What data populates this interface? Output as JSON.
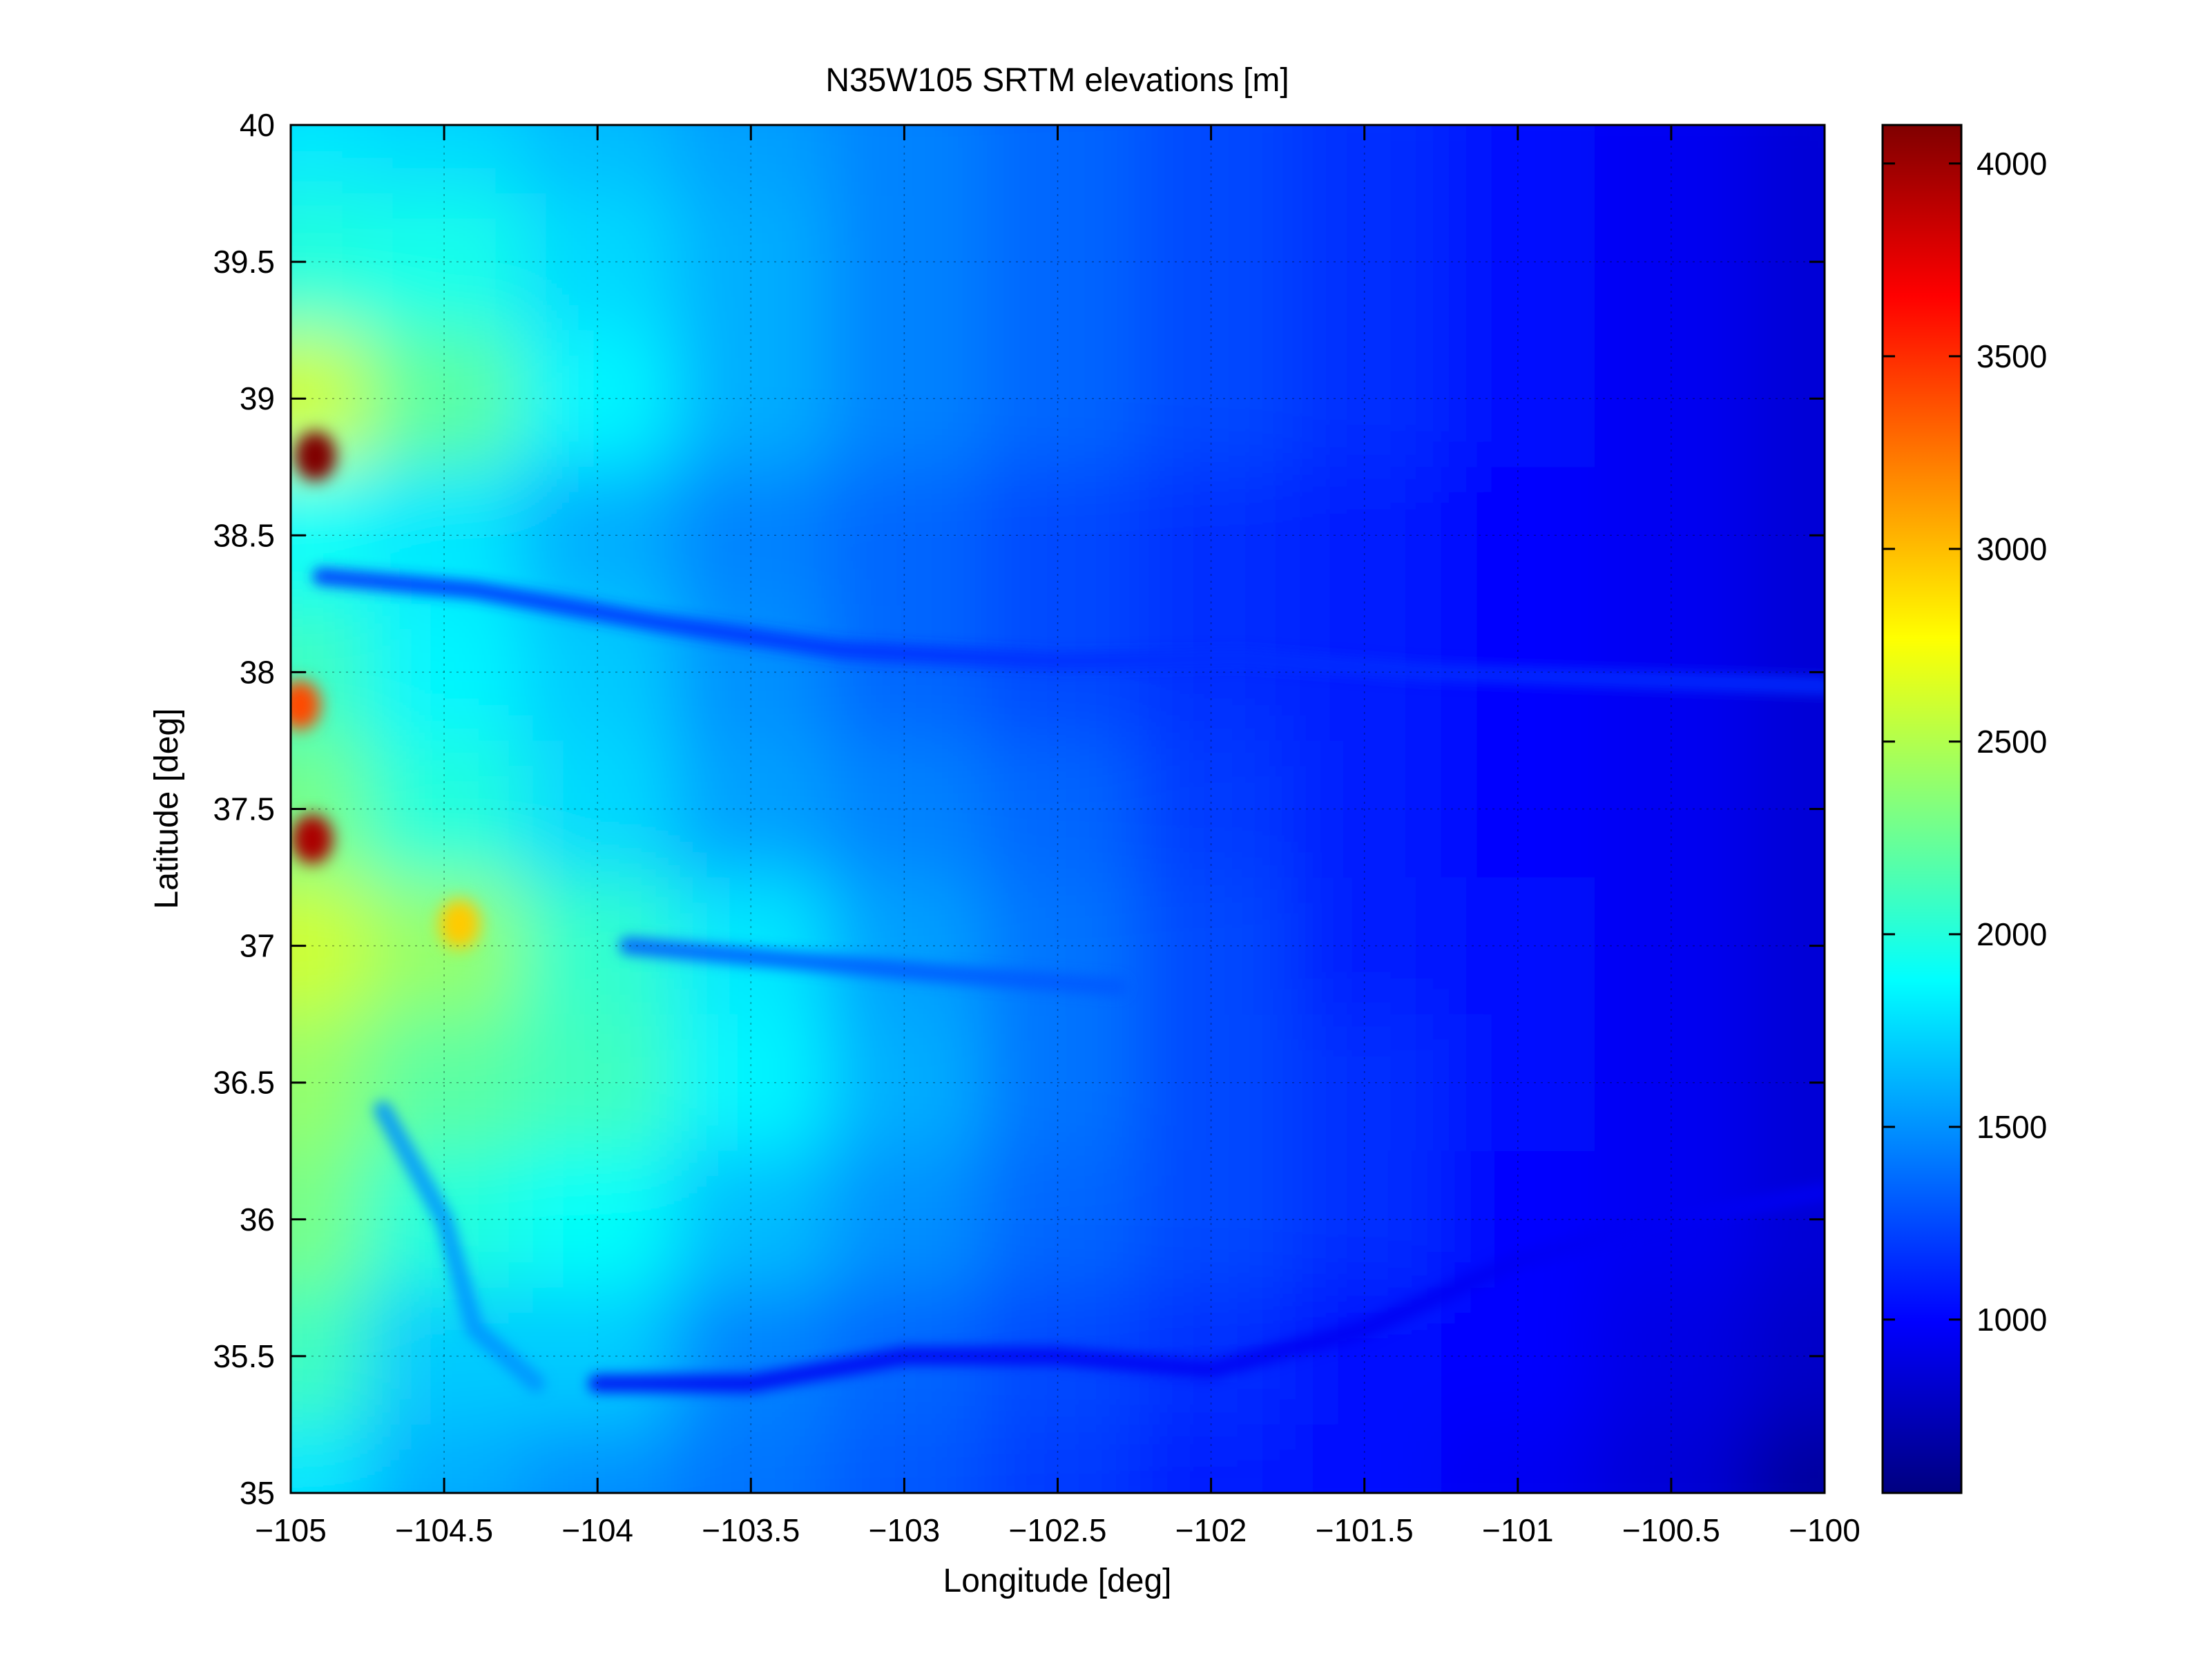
{
  "chart_data": {
    "type": "heatmap",
    "title": "N35W105 SRTM elevations [m]",
    "xlabel": "Longitude [deg]",
    "ylabel": "Latitude [deg]",
    "xlim": [
      -105,
      -100
    ],
    "ylim": [
      35,
      40
    ],
    "xticks": [
      -105,
      -104.5,
      -104,
      -103.5,
      -103,
      -102.5,
      -102,
      -101.5,
      -101,
      -100.5,
      -100
    ],
    "xtick_labels": [
      "−105",
      "−104.5",
      "−104",
      "−103.5",
      "−103",
      "−102.5",
      "−102",
      "−101.5",
      "−101",
      "−100.5",
      "−100"
    ],
    "yticks": [
      35,
      35.5,
      36,
      36.5,
      37,
      37.5,
      38,
      38.5,
      39,
      39.5,
      40
    ],
    "ytick_labels": [
      "35",
      "35.5",
      "36",
      "36.5",
      "37",
      "37.5",
      "38",
      "38.5",
      "39",
      "39.5",
      "40"
    ],
    "grid": true,
    "colormap": "jet",
    "colorbar": {
      "clim": [
        550,
        4100
      ],
      "ticks": [
        1000,
        1500,
        2000,
        2500,
        3000,
        3500,
        4000
      ],
      "tick_labels": [
        "1000",
        "1500",
        "2000",
        "2500",
        "3000",
        "3500",
        "4000"
      ],
      "placement": "right"
    },
    "elevation_grid": {
      "lon": [
        -105,
        -104.5,
        -104,
        -103.5,
        -103,
        -102.5,
        -102,
        -101.5,
        -101,
        -100.5,
        -100
      ],
      "lat": [
        40,
        39.5,
        39,
        38.5,
        38,
        37.5,
        37,
        36.5,
        36,
        35.5,
        35
      ],
      "values": [
        [
          1800,
          1750,
          1650,
          1550,
          1450,
          1350,
          1250,
          1150,
          1050,
          950,
          850
        ],
        [
          2000,
          1950,
          1750,
          1600,
          1450,
          1350,
          1250,
          1150,
          1050,
          950,
          850
        ],
        [
          2600,
          2200,
          1850,
          1600,
          1450,
          1350,
          1250,
          1150,
          1050,
          950,
          850
        ],
        [
          1900,
          1800,
          1600,
          1450,
          1350,
          1250,
          1150,
          1100,
          1000,
          950,
          850
        ],
        [
          2100,
          1850,
          1700,
          1500,
          1350,
          1250,
          1150,
          1100,
          1000,
          950,
          850
        ],
        [
          2300,
          2000,
          1750,
          1550,
          1450,
          1350,
          1200,
          1100,
          1000,
          950,
          850
        ],
        [
          2600,
          2400,
          2050,
          1800,
          1550,
          1400,
          1250,
          1100,
          1050,
          950,
          850
        ],
        [
          2400,
          2200,
          2100,
          1850,
          1600,
          1400,
          1250,
          1150,
          1050,
          950,
          850
        ],
        [
          2300,
          2000,
          1900,
          1650,
          1500,
          1350,
          1250,
          1150,
          1000,
          950,
          850
        ],
        [
          2100,
          1700,
          1700,
          1450,
          1350,
          1250,
          1150,
          1050,
          1000,
          900,
          800
        ],
        [
          1800,
          1600,
          1500,
          1400,
          1300,
          1200,
          1100,
          1050,
          950,
          850,
          650
        ]
      ]
    },
    "peaks": [
      {
        "lon": -104.92,
        "lat": 38.79,
        "elevation": 4100
      },
      {
        "lon": -104.93,
        "lat": 37.39,
        "elevation": 3950
      },
      {
        "lon": -104.97,
        "lat": 37.88,
        "elevation": 3400
      },
      {
        "lon": -104.45,
        "lat": 37.08,
        "elevation": 2950
      }
    ],
    "valleys": [
      {
        "points": [
          [
            -104.9,
            38.35
          ],
          [
            -104.4,
            38.3
          ],
          [
            -103.8,
            38.18
          ],
          [
            -103.2,
            38.08
          ],
          [
            -102.5,
            38.04
          ],
          [
            -101.9,
            38.05
          ],
          [
            -101.3,
            38.0
          ],
          [
            -100.0,
            37.95
          ]
        ],
        "elevation": 1150
      },
      {
        "points": [
          [
            -104.0,
            35.4
          ],
          [
            -103.5,
            35.4
          ],
          [
            -103.0,
            35.5
          ],
          [
            -102.5,
            35.5
          ],
          [
            -102.0,
            35.45
          ],
          [
            -101.5,
            35.6
          ],
          [
            -101.0,
            35.85
          ],
          [
            -100.5,
            36.0
          ],
          [
            -100.0,
            36.1
          ]
        ],
        "elevation": 950
      },
      {
        "points": [
          [
            -104.7,
            36.4
          ],
          [
            -104.5,
            36.0
          ],
          [
            -104.4,
            35.6
          ],
          [
            -104.2,
            35.4
          ]
        ],
        "elevation": 1500
      },
      {
        "points": [
          [
            -103.9,
            37.0
          ],
          [
            -103.4,
            36.95
          ],
          [
            -102.9,
            36.9
          ],
          [
            -102.3,
            36.85
          ]
        ],
        "elevation": 1300
      }
    ]
  }
}
